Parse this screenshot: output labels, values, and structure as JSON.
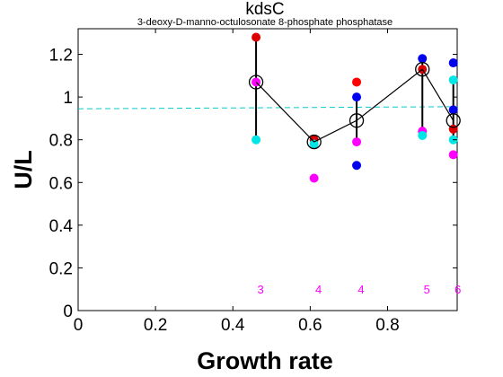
{
  "chart_data": {
    "type": "scatter",
    "title": "kdsC",
    "subtitle": "3-deoxy-D-manno-octulosonate 8-phosphate phosphatase",
    "xlabel": "Growth rate",
    "ylabel": "U/L",
    "xlim": [
      0,
      0.98
    ],
    "ylim": [
      0,
      1.32
    ],
    "xticks": [
      "0",
      "0.2",
      "0.4",
      "0.6",
      "0.8"
    ],
    "yticks": [
      "0",
      "0.2",
      "0.4",
      "0.6",
      "0.8",
      "1",
      "1.2"
    ],
    "grid": false,
    "reference_line": {
      "y_start": 0.945,
      "y_end": 0.955,
      "color": "#00cccc",
      "style": "dashed"
    },
    "x": [
      0.46,
      0.61,
      0.72,
      0.89,
      0.97
    ],
    "mean": [
      1.07,
      0.79,
      0.89,
      1.13,
      0.89
    ],
    "error_low": [
      0.8,
      0.78,
      0.79,
      0.84,
      0.8
    ],
    "error_high": [
      1.28,
      0.81,
      1.0,
      1.17,
      1.08
    ],
    "counts": [
      "3",
      "4",
      "4",
      "5",
      "6"
    ],
    "count_color": "#ff00ff",
    "points": [
      {
        "x": 0.46,
        "y": 1.28,
        "color": "#dd0000"
      },
      {
        "x": 0.46,
        "y": 1.07,
        "color": "#ff00ff"
      },
      {
        "x": 0.46,
        "y": 0.8,
        "color": "#00e5e5"
      },
      {
        "x": 0.61,
        "y": 0.8,
        "color": "#dd0000"
      },
      {
        "x": 0.61,
        "y": 0.78,
        "color": "#00e5e5"
      },
      {
        "x": 0.61,
        "y": 0.62,
        "color": "#ff00ff"
      },
      {
        "x": 0.72,
        "y": 1.07,
        "color": "#ff0000"
      },
      {
        "x": 0.72,
        "y": 1.0,
        "color": "#0000ee"
      },
      {
        "x": 0.72,
        "y": 0.79,
        "color": "#ff00ff"
      },
      {
        "x": 0.72,
        "y": 0.68,
        "color": "#0000ee"
      },
      {
        "x": 0.89,
        "y": 1.18,
        "color": "#0000ee"
      },
      {
        "x": 0.89,
        "y": 1.13,
        "color": "#dd0000"
      },
      {
        "x": 0.89,
        "y": 0.84,
        "color": "#ff00ff"
      },
      {
        "x": 0.89,
        "y": 0.82,
        "color": "#00e5e5"
      },
      {
        "x": 0.97,
        "y": 1.16,
        "color": "#0000ee"
      },
      {
        "x": 0.97,
        "y": 1.08,
        "color": "#00e5e5"
      },
      {
        "x": 0.97,
        "y": 0.94,
        "color": "#0000ee"
      },
      {
        "x": 0.97,
        "y": 0.85,
        "color": "#dd0000"
      },
      {
        "x": 0.97,
        "y": 0.8,
        "color": "#00e5e5"
      },
      {
        "x": 0.97,
        "y": 0.73,
        "color": "#ff00ff"
      }
    ]
  }
}
